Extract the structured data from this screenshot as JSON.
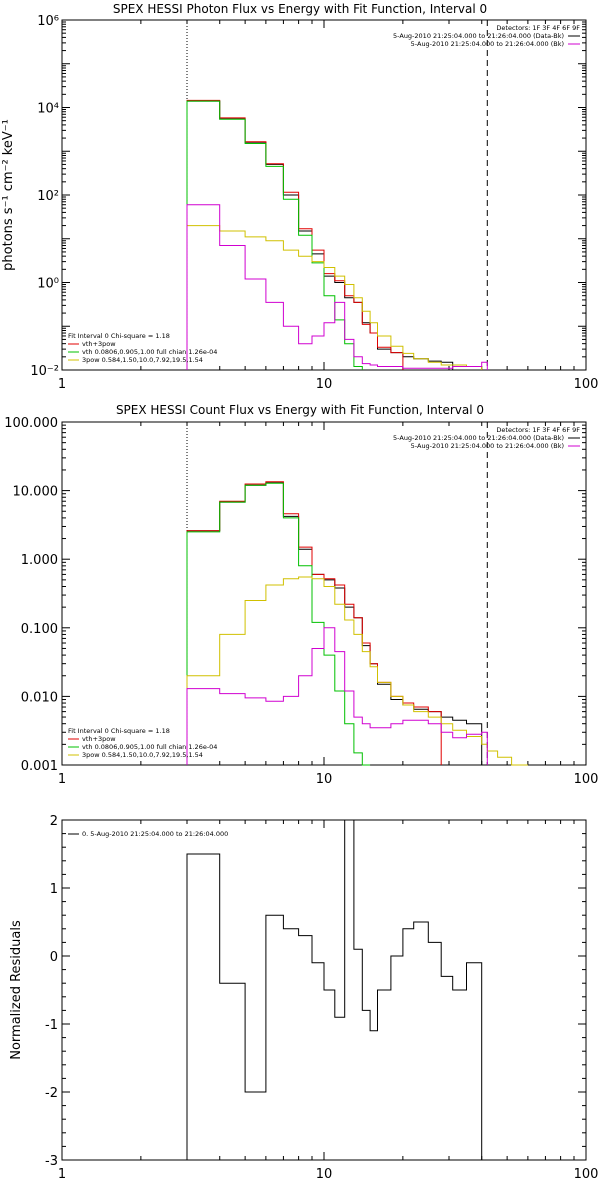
{
  "chart_data": [
    {
      "type": "line",
      "title": "SPEX HESSI Photon Flux vs Energy with Fit Function, Interval 0",
      "xlabel": "",
      "ylabel": "photons s⁻¹ cm⁻² keV⁻¹",
      "x_scale": "log",
      "y_scale": "log",
      "xlim": [
        1,
        100
      ],
      "ylim": [
        0.01,
        1000000
      ],
      "x_ticks": [
        1,
        10,
        100
      ],
      "x_tick_labels": [
        "1",
        "10",
        "100"
      ],
      "y_ticks": [
        0.01,
        1,
        100,
        10000,
        1000000
      ],
      "y_tick_labels": [
        "10⁻²",
        "10⁰",
        "10²",
        "10⁴",
        "10⁶"
      ],
      "fit_range_marker": 3,
      "upper_range_marker": 42,
      "legend_top_right": [
        "Detectors: 1F 3F 4F 6F 9F",
        "5-Aug-2010 21:25:04.000 to 21:26:04.000 (Data-Bk)",
        "5-Aug-2010 21:25:04.000 to 21:26:04.000 (Bk)"
      ],
      "legend_bottom_left": [
        "Fit Interval  0    Chi-square = 1.18",
        "vth+3pow",
        "vth 0.0806,0.905,1.00  full chian 1.26e-04",
        "3pow 0.584,1.50,10.0,7.92,19.5,1.54"
      ],
      "x_edges": [
        3,
        4,
        5,
        6,
        7,
        8,
        9,
        10,
        11,
        12,
        13,
        14,
        15,
        16,
        18,
        20,
        22,
        25,
        28,
        31,
        35,
        40,
        42
      ],
      "series": [
        {
          "name": "5-Aug-2010 21:25:04.000 to 21:26:04.000 (Data-Bk)",
          "color": "#000000",
          "values": [
            14000,
            5500,
            1600,
            500,
            100,
            15,
            4.5,
            1.4,
            1.0,
            0.45,
            0.35,
            0.12,
            0.07,
            0.03,
            0.025,
            0.02,
            0.018,
            0.016,
            0.015
          ]
        },
        {
          "name": "vth+3pow",
          "color": "#e00000",
          "values": [
            14500,
            5800,
            1650,
            520,
            115,
            17,
            5.5,
            1.6,
            1.1,
            0.5,
            0.35,
            0.11,
            0.07,
            0.033,
            0.025
          ]
        },
        {
          "name": "vth",
          "color": "#00c000",
          "values": [
            14000,
            5400,
            1500,
            450,
            80,
            12,
            2.8,
            0.5,
            0.14,
            0.04,
            0.012
          ]
        },
        {
          "name": "3pow",
          "color": "#d0c000",
          "values": [
            20,
            15,
            11,
            9,
            5.5,
            4.0,
            3.0,
            2.2,
            1.4,
            0.9,
            0.45,
            0.22,
            0.12,
            0.06,
            0.035,
            0.024,
            0.018,
            0.015,
            0.013,
            0.013,
            0.012
          ]
        },
        {
          "name": "5-Aug-2010 21:25:04.000 to 21:26:04.000 (Bk)",
          "color": "#d000d0",
          "values": [
            60,
            7,
            1.2,
            0.35,
            0.1,
            0.04,
            0.06,
            0.12,
            0.35,
            0.05,
            0.02,
            0.014,
            0.013,
            0.012,
            0.012,
            0.011,
            0.011,
            0.011,
            0.011,
            0.012,
            0.012,
            0.015
          ]
        }
      ]
    },
    {
      "type": "line",
      "title": "SPEX HESSI Count Flux vs Energy with Fit Function, Interval 0",
      "xlabel": "",
      "ylabel": "",
      "x_scale": "log",
      "y_scale": "log",
      "xlim": [
        1,
        100
      ],
      "ylim": [
        0.001,
        100
      ],
      "x_ticks": [
        1,
        10,
        100
      ],
      "x_tick_labels": [
        "1",
        "10",
        "100"
      ],
      "y_ticks": [
        0.001,
        0.01,
        0.1,
        1,
        10,
        100
      ],
      "y_tick_labels": [
        "0.001",
        "0.010",
        "0.100",
        "1.000",
        "10.000",
        "100.000"
      ],
      "fit_range_marker": 3,
      "upper_range_marker": 42,
      "legend_top_right": [
        "Detectors: 1F 3F 4F 6F 9F",
        "5-Aug-2010 21:25:04.000 to 21:26:04.000 (Data-Bk)",
        "5-Aug-2010 21:25:04.000 to 21:26:04.000 (Bk)"
      ],
      "legend_bottom_left": [
        "Fit Interval  0    Chi-square = 1.18",
        "vth+3pow",
        "vth 0.0806,0.905,1.00  full chian 1.26e-04",
        "3pow 0.584,1.50,10.0,7.92,19.5,1.54"
      ],
      "x_edges": [
        3,
        4,
        5,
        6,
        7,
        8,
        9,
        10,
        11,
        12,
        13,
        14,
        15,
        16,
        18,
        20,
        22,
        25,
        28,
        31,
        35,
        40,
        42,
        46,
        52,
        60
      ],
      "series": [
        {
          "name": "5-Aug-2010 21:25:04.000 to 21:26:04.000 (Data-Bk)",
          "color": "#000000",
          "values": [
            2.6,
            6.8,
            12.0,
            13.0,
            4.2,
            1.4,
            0.6,
            0.5,
            0.38,
            0.2,
            0.14,
            0.055,
            0.03,
            0.015,
            0.009,
            0.0075,
            0.0065,
            0.006,
            0.005,
            0.0045,
            0.004
          ]
        },
        {
          "name": "vth+3pow",
          "color": "#e00000",
          "values": [
            2.6,
            7.0,
            12.5,
            13.5,
            4.6,
            1.5,
            0.6,
            0.52,
            0.42,
            0.22,
            0.14,
            0.06,
            0.03,
            0.016,
            0.01,
            0.008,
            0.007,
            0.006
          ]
        },
        {
          "name": "vth",
          "color": "#00c000",
          "values": [
            2.5,
            6.8,
            12.0,
            12.8,
            4.0,
            0.8,
            0.12,
            0.04,
            0.012,
            0.004,
            0.0015,
            0.001
          ]
        },
        {
          "name": "3pow",
          "color": "#d0c000",
          "values": [
            0.02,
            0.08,
            0.25,
            0.42,
            0.52,
            0.55,
            0.52,
            0.4,
            0.22,
            0.13,
            0.08,
            0.045,
            0.027,
            0.016,
            0.01,
            0.0075,
            0.006,
            0.005,
            0.004,
            0.0032,
            0.0026,
            0.002,
            0.0016,
            0.0013,
            0.001
          ]
        },
        {
          "name": "5-Aug-2010 21:25:04.000 to 21:26:04.000 (Bk)",
          "color": "#d000d0",
          "values": [
            0.013,
            0.011,
            0.0095,
            0.0085,
            0.01,
            0.02,
            0.05,
            0.1,
            0.045,
            0.012,
            0.005,
            0.004,
            0.0035,
            0.0035,
            0.004,
            0.0045,
            0.0045,
            0.004,
            0.003,
            0.0025,
            0.0028,
            0.003
          ]
        }
      ]
    },
    {
      "type": "line",
      "title": "",
      "xlabel": "",
      "ylabel": "Normalized Residuals",
      "x_scale": "log",
      "y_scale": "linear",
      "xlim": [
        1,
        100
      ],
      "ylim": [
        -3,
        2
      ],
      "x_ticks": [
        1,
        10,
        100
      ],
      "x_tick_labels": [
        "1",
        "10",
        "100"
      ],
      "y_ticks": [
        -3,
        -2,
        -1,
        0,
        1,
        2
      ],
      "y_tick_labels": [
        "-3",
        "-2",
        "-1",
        "0",
        "1",
        "2"
      ],
      "legend_top_left": [
        "0.  5-Aug-2010 21:25:04.000 to 21:26:04.000"
      ],
      "x_edges": [
        3,
        4,
        5,
        6,
        7,
        8,
        9,
        10,
        11,
        12,
        13,
        14,
        15,
        16,
        18,
        20,
        22,
        25,
        28,
        31,
        35,
        40
      ],
      "series": [
        {
          "name": "0.  5-Aug-2010 21:25:04.000 to 21:26:04.000",
          "color": "#000000",
          "values": [
            1.5,
            -0.4,
            -2.0,
            0.6,
            0.4,
            0.3,
            -0.1,
            -0.5,
            -0.9,
            2.0,
            0.1,
            -0.8,
            -1.1,
            -0.5,
            0.0,
            0.4,
            0.5,
            0.2,
            -0.3,
            -0.5,
            -0.1
          ]
        }
      ]
    }
  ]
}
